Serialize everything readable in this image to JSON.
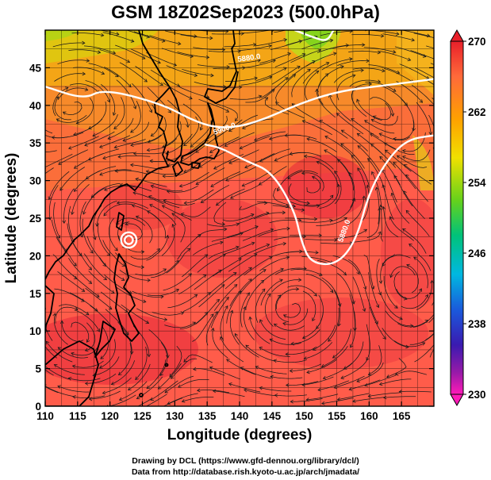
{
  "title": "GSM 18Z02Sep2023 (500.0hPa)",
  "xlabel": "Longitude (degrees)",
  "ylabel": "Latitude  (degrees)",
  "credit_line1": "Drawing by DCL (https://www.gfd-dennou.org/library/dcl/)",
  "credit_line2": "Data from http://database.rish.kyoto-u.ac.jp/arch/jmadata/",
  "x_ticks": [
    "110",
    "115",
    "120",
    "125",
    "130",
    "135",
    "140",
    "145",
    "150",
    "155",
    "160",
    "165"
  ],
  "y_ticks": [
    "0",
    "5",
    "10",
    "15",
    "20",
    "25",
    "30",
    "35",
    "40",
    "45"
  ],
  "colorbar_ticks": [
    "270",
    "262",
    "254",
    "246",
    "238",
    "230"
  ],
  "contour_labels": [
    "5900.0",
    "5880.0",
    "5880.0"
  ],
  "chart_data": {
    "type": "heatmap",
    "variable": "temperature with geopotential height contours and wind streamlines",
    "level": "500.0hPa",
    "xlim": [
      110,
      170
    ],
    "ylim": [
      0,
      50
    ],
    "colorbar_range": [
      230,
      270
    ],
    "contours": [
      {
        "label": "5900.0",
        "points": [
          [
            110,
            42.5
          ],
          [
            116,
            40.8
          ],
          [
            119,
            42.2
          ],
          [
            128,
            40.2
          ],
          [
            133,
            37.9
          ],
          [
            137,
            36.9
          ],
          [
            142,
            37.5
          ],
          [
            150,
            40.5
          ],
          [
            156,
            42.0
          ],
          [
            162,
            42.6
          ],
          [
            170,
            43.5
          ]
        ]
      },
      {
        "label": "5880.0",
        "points": [
          [
            134.6,
            34.8
          ],
          [
            137,
            34.4
          ],
          [
            141,
            32.6
          ],
          [
            145,
            31.2
          ],
          [
            148.5,
            26
          ],
          [
            149.5,
            22
          ],
          [
            151,
            19
          ],
          [
            155,
            18.8
          ],
          [
            158,
            22
          ],
          [
            160,
            28.5
          ],
          [
            163,
            33
          ],
          [
            166,
            35.5
          ],
          [
            170,
            36
          ]
        ]
      },
      {
        "label": "5880.0",
        "points": [
          [
            148.5,
            50
          ],
          [
            151.5,
            49
          ],
          [
            153.5,
            48.5
          ],
          [
            154.5,
            50
          ]
        ]
      }
    ],
    "closed_contours": [
      {
        "center": [
          122.9,
          22.1
        ],
        "radius_deg": 0.7
      }
    ],
    "coastline_note": "East Asia coastline, Japan, Korea, Philippines, Taiwan, Borneo"
  },
  "colors": {
    "high": "#e5002a",
    "mid": "#ff6347",
    "north": "#f4a000",
    "cold_tip": "#73d21b",
    "contour": "#ffffff",
    "streamline": "#1a1a1a",
    "coast": "#000000"
  }
}
